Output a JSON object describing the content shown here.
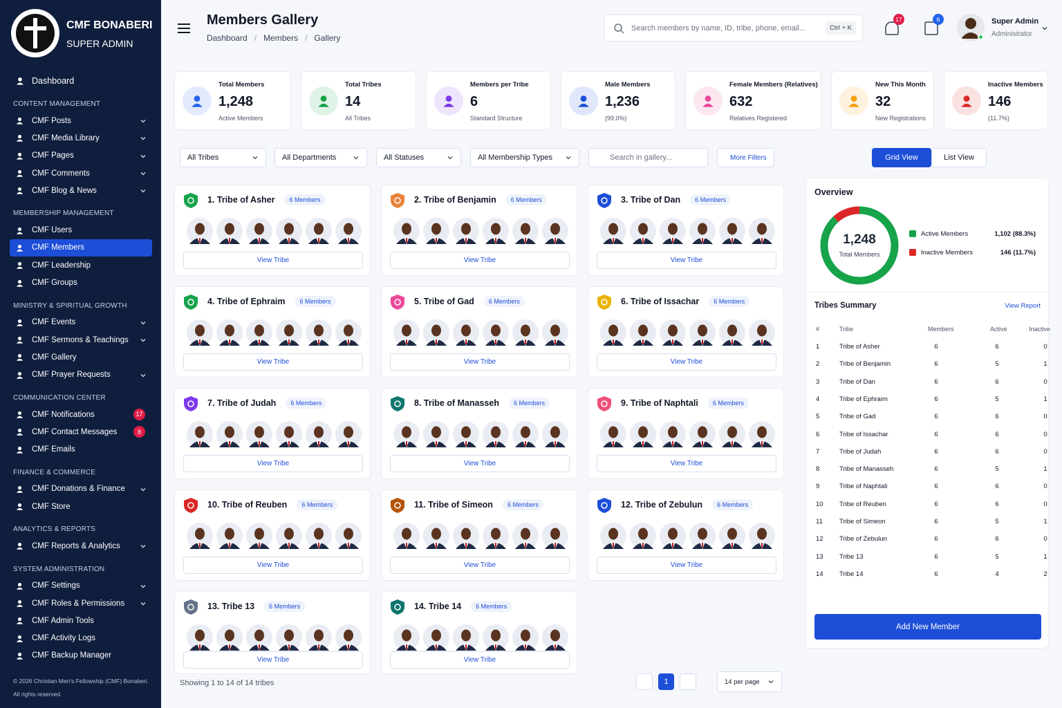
{
  "sidebar": {
    "brand": "CMF BONABERI",
    "role": "SUPER ADMIN",
    "dashboard": "Dashboard",
    "sections": [
      {
        "title": "CONTENT MANAGEMENT",
        "items": [
          {
            "label": "CMF Posts",
            "expandable": true
          },
          {
            "label": "CMF Media Library",
            "expandable": true
          },
          {
            "label": "CMF Pages",
            "expandable": true
          },
          {
            "label": "CMF Comments",
            "expandable": true
          },
          {
            "label": "CMF Blog & News",
            "expandable": true
          }
        ]
      },
      {
        "title": "MEMBERSHIP MANAGEMENT",
        "items": [
          {
            "label": "CMF Users"
          },
          {
            "label": "CMF Members",
            "active": true
          },
          {
            "label": "CMF Leadership"
          },
          {
            "label": "CMF Groups"
          }
        ]
      },
      {
        "title": "MINISTRY & SPIRITUAL GROWTH",
        "items": [
          {
            "label": "CMF Events",
            "expandable": true
          },
          {
            "label": "CMF Sermons & Teachings",
            "expandable": true
          },
          {
            "label": "CMF Gallery"
          },
          {
            "label": "CMF Prayer Requests",
            "expandable": true
          }
        ]
      },
      {
        "title": "COMMUNICATION CENTER",
        "items": [
          {
            "label": "CMF Notifications",
            "badge": 17
          },
          {
            "label": "CMF Contact Messages",
            "badge": 8
          },
          {
            "label": "CMF Emails"
          }
        ]
      },
      {
        "title": "FINANCE & COMMERCE",
        "items": [
          {
            "label": "CMF Donations & Finance",
            "expandable": true
          },
          {
            "label": "CMF Store"
          }
        ]
      },
      {
        "title": "ANALYTICS & REPORTS",
        "items": [
          {
            "label": "CMF Reports & Analytics",
            "expandable": true
          }
        ]
      },
      {
        "title": "SYSTEM ADMINISTRATION",
        "items": [
          {
            "label": "CMF Settings",
            "expandable": true
          },
          {
            "label": "CMF Roles & Permissions",
            "expandable": true
          },
          {
            "label": "CMF Admin Tools"
          },
          {
            "label": "CMF Activity Logs"
          },
          {
            "label": "CMF Backup Manager"
          }
        ]
      }
    ],
    "footer": [
      "© 2026 Christian Men's Fellowship (CMF) Bonaberi.",
      "All rights reserved."
    ]
  },
  "header": {
    "title": "Members Gallery",
    "breadcrumb": [
      "Dashboard",
      "Members",
      "Gallery"
    ],
    "search_placeholder": "Search members by name, ID, tribe, phone, email...",
    "shortcut": "Ctrl + K",
    "notifications": 17,
    "messages": 6,
    "user_name": "Super Admin",
    "user_role": "Administrator"
  },
  "stats": [
    {
      "label": "Total Members",
      "value": "1,248",
      "sub": "Active Members",
      "color": "#2563eb"
    },
    {
      "label": "Total Tribes",
      "value": "14",
      "sub": "All Tribes",
      "color": "#16a34a"
    },
    {
      "label": "Members per Tribe",
      "value": "6",
      "sub": "Standard Structure",
      "color": "#7c3aed"
    },
    {
      "label": "Male Members",
      "value": "1,236",
      "sub": "(99.0%)",
      "color": "#1d4ed8"
    },
    {
      "label": "Female Members (Relatives)",
      "value": "632",
      "sub": "Relatives Registered",
      "color": "#ec4899"
    },
    {
      "label": "New This Month",
      "value": "32",
      "sub": "New Registrations",
      "color": "#f59e0b"
    },
    {
      "label": "Inactive Members",
      "value": "146",
      "sub": "(11.7%)",
      "color": "#dc2626"
    }
  ],
  "filters": {
    "selects": [
      "All Tribes",
      "All Departments",
      "All Statuses",
      "All Membership Types"
    ],
    "search_placeholder": "Search in gallery...",
    "more": "More Filters",
    "grid_view": "Grid View",
    "list_view": "List View"
  },
  "tribes": {
    "view_label": "View Tribe",
    "items": [
      {
        "name": "1. Tribe of Asher",
        "badge": "6 Members",
        "color": "#16a34a"
      },
      {
        "name": "2. Tribe of Benjamin",
        "badge": "6 Members",
        "color": "#e8833a"
      },
      {
        "name": "3. Tribe of Dan",
        "badge": "6 Members",
        "color": "#1d4ed8"
      },
      {
        "name": "4. Tribe of Ephraim",
        "badge": "6 Members",
        "color": "#16a34a"
      },
      {
        "name": "5. Tribe of Gad",
        "badge": "6 Members",
        "color": "#ec4899"
      },
      {
        "name": "6. Tribe of Issachar",
        "badge": "6 Members",
        "color": "#eab308"
      },
      {
        "name": "7. Tribe of Judah",
        "badge": "6 Members",
        "color": "#7c3aed"
      },
      {
        "name": "8. Tribe of Manasseh",
        "badge": "6 Members",
        "color": "#0f766e"
      },
      {
        "name": "9. Tribe of Naphtali",
        "badge": "6 Members",
        "color": "#f0507a"
      },
      {
        "name": "10. Tribe of Reuben",
        "badge": "6 Members",
        "color": "#dc2626"
      },
      {
        "name": "11. Tribe of Simeon",
        "badge": "6 Members",
        "color": "#b45309"
      },
      {
        "name": "12. Tribe of Zebulun",
        "badge": "6 Members",
        "color": "#1d4ed8"
      },
      {
        "name": "13. Tribe 13",
        "badge": "6 Members",
        "color": "#64748b"
      },
      {
        "name": "14. Tribe 14",
        "badge": "6 Members",
        "color": "#0f766e"
      }
    ]
  },
  "overview": {
    "title": "Overview",
    "total": "1,248",
    "total_label": "Total Members",
    "items": [
      {
        "name": "Active Members",
        "value": 1102,
        "label": "1,102 (88.3%)",
        "color": "#16a34a"
      },
      {
        "name": "Inactive Members",
        "value": 146,
        "label": "146 (11.7%)",
        "color": "#dc2626"
      }
    ]
  },
  "summary": {
    "title": "Tribes Summary",
    "link": "View Report",
    "headers": [
      "#",
      "Tribe",
      "Members",
      "Active",
      "Inactive"
    ],
    "rows": [
      [
        1,
        "Tribe of Asher",
        6,
        6,
        0
      ],
      [
        2,
        "Tribe of Benjamin",
        6,
        5,
        1
      ],
      [
        3,
        "Tribe of Dan",
        6,
        6,
        0
      ],
      [
        4,
        "Tribe of Ephraim",
        6,
        5,
        1
      ],
      [
        5,
        "Tribe of Gad",
        6,
        6,
        0
      ],
      [
        6,
        "Tribe of Issachar",
        6,
        6,
        0
      ],
      [
        7,
        "Tribe of Judah",
        6,
        6,
        0
      ],
      [
        8,
        "Tribe of Manasseh",
        6,
        5,
        1
      ],
      [
        9,
        "Tribe of Naphtali",
        6,
        6,
        0
      ],
      [
        10,
        "Tribe of Reuben",
        6,
        6,
        0
      ],
      [
        11,
        "Tribe of Simeon",
        6,
        5,
        1
      ],
      [
        12,
        "Tribe of Zebulun",
        6,
        6,
        0
      ],
      [
        13,
        "Tribe 13",
        6,
        5,
        1
      ],
      [
        14,
        "Tribe 14",
        6,
        4,
        2
      ]
    ]
  },
  "add_button": "Add New Member",
  "pagination": {
    "showing": "Showing 1 to 14 of 14 tribes",
    "page": "1",
    "per_page": "14 per page"
  }
}
